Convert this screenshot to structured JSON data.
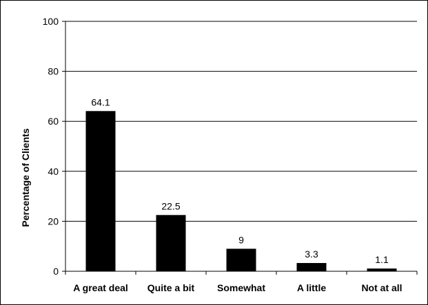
{
  "chart_data": {
    "type": "bar",
    "title": "",
    "xlabel": "",
    "ylabel": "Percentage of Clients",
    "categories": [
      "A great deal",
      "Quite a bit",
      "Somewhat",
      "A little",
      "Not at all"
    ],
    "values": [
      64.1,
      22.5,
      9,
      3.3,
      1.1
    ],
    "data_labels": [
      "64.1",
      "22.5",
      "9",
      "3.3",
      "1.1"
    ],
    "ylim": [
      0,
      100
    ],
    "yticks": [
      0,
      20,
      40,
      60,
      80,
      100
    ],
    "grid": true,
    "legend": "none",
    "bar_color": "#000000",
    "grid_color": "#000000"
  }
}
